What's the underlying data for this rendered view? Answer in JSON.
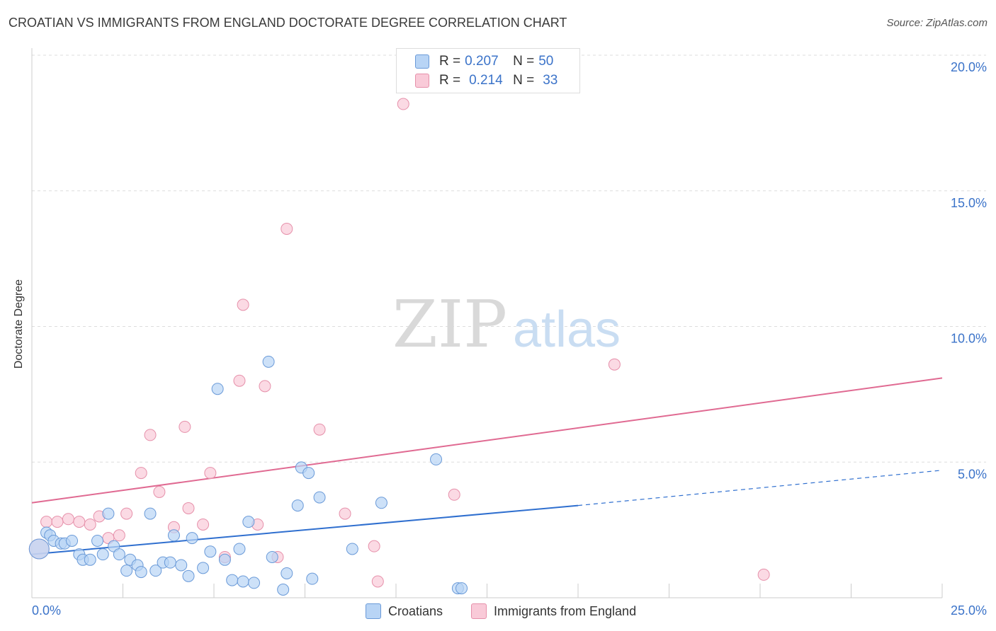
{
  "title": "CROATIAN VS IMMIGRANTS FROM ENGLAND DOCTORATE DEGREE CORRELATION CHART",
  "source": "Source: ZipAtlas.com",
  "watermark": {
    "zip": "ZIP",
    "atlas": "atlas"
  },
  "legend": {
    "r_label": "R =",
    "n_label": "N =",
    "series": [
      {
        "r": "0.207",
        "n": "50"
      },
      {
        "r": "0.214",
        "n": "33"
      }
    ]
  },
  "bottom_legend": [
    "Croatians",
    "Immigrants from England"
  ],
  "colors": {
    "croatians_fill": "#b8d4f5",
    "croatians_stroke": "#6a9ad8",
    "croatians_line": "#2f6fcf",
    "england_fill": "#f9cad8",
    "england_stroke": "#e690aa",
    "england_line": "#e06a92",
    "tick_text": "#3b73c9",
    "grid": "#dddddd"
  },
  "chart_data": {
    "type": "scatter",
    "title": "CROATIAN VS IMMIGRANTS FROM ENGLAND DOCTORATE DEGREE CORRELATION CHART",
    "xlabel": "",
    "ylabel": "Doctorate Degree",
    "xlim": [
      0,
      25
    ],
    "ylim": [
      0,
      20.5
    ],
    "x_tick_labels": [
      "0.0%",
      "25.0%"
    ],
    "y_ticks": [
      5,
      10,
      15,
      20
    ],
    "y_tick_labels": [
      "5.0%",
      "10.0%",
      "15.0%",
      "20.0%"
    ],
    "series": [
      {
        "name": "Croatians",
        "points": [
          [
            0.2,
            1.8
          ],
          [
            0.4,
            2.4
          ],
          [
            0.5,
            2.3
          ],
          [
            0.6,
            2.1
          ],
          [
            0.8,
            2.0
          ],
          [
            0.9,
            2.0
          ],
          [
            1.1,
            2.1
          ],
          [
            1.3,
            1.6
          ],
          [
            1.4,
            1.4
          ],
          [
            1.6,
            1.4
          ],
          [
            1.8,
            2.1
          ],
          [
            1.95,
            1.6
          ],
          [
            2.1,
            3.1
          ],
          [
            2.25,
            1.9
          ],
          [
            2.4,
            1.6
          ],
          [
            2.6,
            1.0
          ],
          [
            2.7,
            1.4
          ],
          [
            2.9,
            1.2
          ],
          [
            3.0,
            0.95
          ],
          [
            3.25,
            3.1
          ],
          [
            3.4,
            1.0
          ],
          [
            3.6,
            1.3
          ],
          [
            3.8,
            1.3
          ],
          [
            3.9,
            2.3
          ],
          [
            4.1,
            1.2
          ],
          [
            4.3,
            0.8
          ],
          [
            4.4,
            2.2
          ],
          [
            4.7,
            1.1
          ],
          [
            4.9,
            1.7
          ],
          [
            5.1,
            7.7
          ],
          [
            5.3,
            1.4
          ],
          [
            5.5,
            0.65
          ],
          [
            5.7,
            1.8
          ],
          [
            5.8,
            0.6
          ],
          [
            5.95,
            2.8
          ],
          [
            6.1,
            0.55
          ],
          [
            6.5,
            8.7
          ],
          [
            6.6,
            1.5
          ],
          [
            6.9,
            0.3
          ],
          [
            7.0,
            0.9
          ],
          [
            7.3,
            3.4
          ],
          [
            7.4,
            4.8
          ],
          [
            7.6,
            4.6
          ],
          [
            7.7,
            0.7
          ],
          [
            7.9,
            3.7
          ],
          [
            8.8,
            1.8
          ],
          [
            9.6,
            3.5
          ],
          [
            11.1,
            5.1
          ],
          [
            11.7,
            0.35
          ],
          [
            11.8,
            0.35
          ]
        ],
        "trend": {
          "x0": 0,
          "y0": 1.6,
          "x1": 15,
          "y1": 3.4,
          "dashed_to_x": 25,
          "dashed_to_y": 4.7
        }
      },
      {
        "name": "Immigrants from England",
        "points": [
          [
            0.2,
            1.8
          ],
          [
            0.4,
            2.8
          ],
          [
            0.7,
            2.8
          ],
          [
            1.0,
            2.9
          ],
          [
            1.3,
            2.8
          ],
          [
            1.6,
            2.7
          ],
          [
            1.85,
            3.0
          ],
          [
            2.1,
            2.2
          ],
          [
            2.4,
            2.3
          ],
          [
            2.6,
            3.1
          ],
          [
            3.0,
            4.6
          ],
          [
            3.25,
            6.0
          ],
          [
            3.5,
            3.9
          ],
          [
            3.9,
            2.6
          ],
          [
            4.2,
            6.3
          ],
          [
            4.3,
            3.3
          ],
          [
            4.7,
            2.7
          ],
          [
            4.9,
            4.6
          ],
          [
            5.3,
            1.5
          ],
          [
            5.7,
            8.0
          ],
          [
            5.8,
            10.8
          ],
          [
            6.2,
            2.7
          ],
          [
            6.4,
            7.8
          ],
          [
            6.75,
            1.5
          ],
          [
            7.0,
            13.6
          ],
          [
            7.9,
            6.2
          ],
          [
            8.6,
            3.1
          ],
          [
            9.4,
            1.9
          ],
          [
            9.5,
            0.6
          ],
          [
            10.2,
            18.2
          ],
          [
            11.6,
            3.8
          ],
          [
            16.0,
            8.6
          ],
          [
            20.1,
            0.85
          ]
        ],
        "trend": {
          "x0": 0,
          "y0": 3.5,
          "x1": 25,
          "y1": 8.1
        }
      }
    ]
  }
}
